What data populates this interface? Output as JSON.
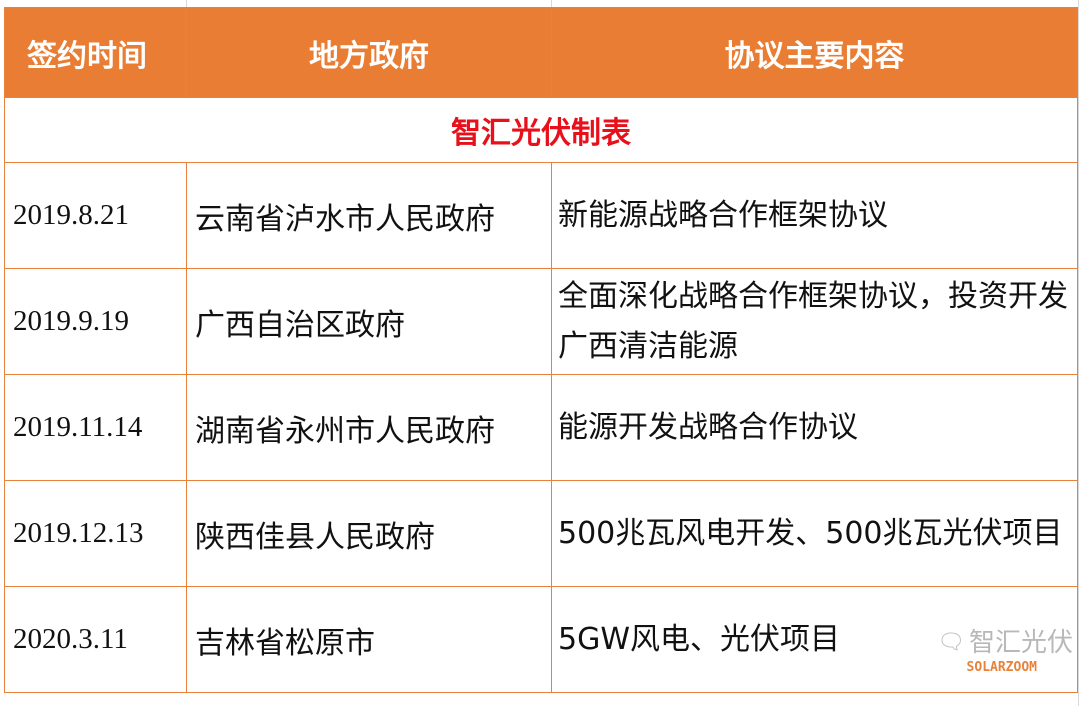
{
  "header": {
    "columns": [
      "签约时间",
      "地方政府",
      "协议主要内容"
    ]
  },
  "title": "智汇光伏制表",
  "rows": [
    {
      "date": "2019.8.21",
      "government": "云南省泸水市人民政府",
      "content": "新能源战略合作框架协议"
    },
    {
      "date": "2019.9.19",
      "government": "广西自治区政府",
      "content": "全面深化战略合作框架协议，投资开发广西清洁能源"
    },
    {
      "date": "2019.11.14",
      "government": "湖南省永州市人民政府",
      "content": "能源开发战略合作协议"
    },
    {
      "date": "2019.12.13",
      "government": "陕西佳县人民政府",
      "content": "500兆瓦风电开发、500兆瓦光伏项目"
    },
    {
      "date": "2020.3.11",
      "government": "吉林省松原市",
      "content": "5GW风电、光伏项目"
    }
  ],
  "watermark": {
    "name": "智汇光伏",
    "brand": "SOLARZOOM",
    "icon": "wechat-icon"
  },
  "colors": {
    "header_bg": "#e87d33",
    "title_text": "#e8101a",
    "border": "#e8823a"
  }
}
